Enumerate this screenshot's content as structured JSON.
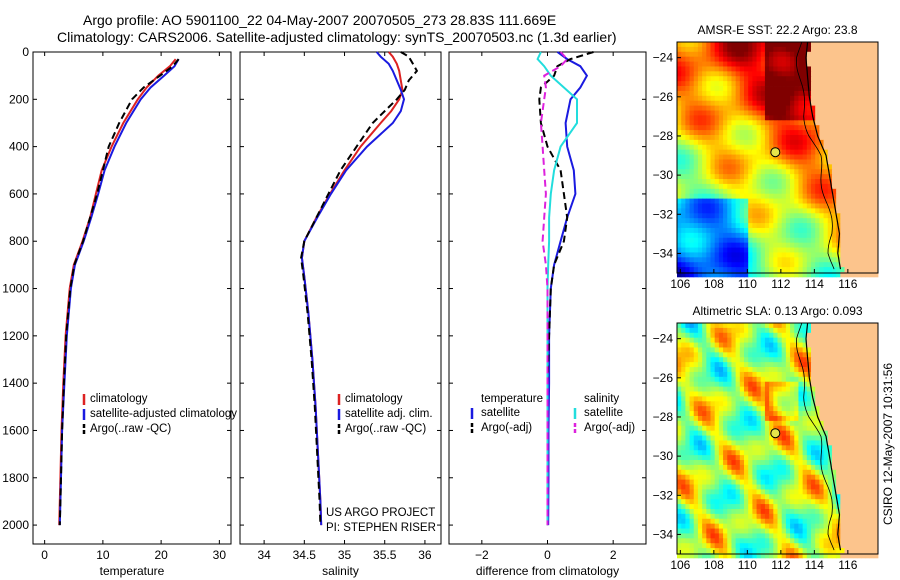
{
  "title": {
    "line1": "Argo profile: AO 5901100_22 04-May-2007 20070505_273 28.83S 111.669E",
    "line2": "Climatology: CARS2006. Satellite-adjusted climatology: synTS_20070503.nc (1.3d earlier)"
  },
  "side_label": "CSIRO 12-May-2007 10:31:56",
  "colors": {
    "climatology": "#dd2222",
    "satellite": "#1a1ae0",
    "argo": "#000000",
    "sal_satellite": "#22dddd",
    "sal_argo": "#dd22dd",
    "land": "#fcc48c"
  },
  "chart_data": [
    {
      "type": "line",
      "id": "temperature",
      "xlabel": "temperature",
      "xlim": [
        -2,
        32
      ],
      "xticks": [
        0,
        10,
        20,
        30
      ],
      "ylim": [
        0,
        2080
      ],
      "y_reversed": true,
      "yticks": [
        0,
        200,
        400,
        600,
        800,
        1000,
        1200,
        1400,
        1600,
        1800,
        2000
      ],
      "legend": [
        "climatology",
        "satellite-adjusted climatology",
        "Argo(..raw -QC)"
      ],
      "depth": [
        30,
        60,
        100,
        150,
        200,
        300,
        400,
        500,
        600,
        700,
        800,
        900,
        1000,
        1200,
        1400,
        1600,
        1800,
        2000
      ],
      "series": [
        {
          "name": "climatology",
          "style": "solid",
          "color": "#dd2222",
          "values": [
            22.5,
            21.5,
            19.5,
            17.5,
            16.0,
            13.5,
            11.5,
            9.8,
            8.8,
            7.8,
            6.5,
            5.0,
            4.3,
            3.6,
            3.2,
            2.9,
            2.7,
            2.5
          ]
        },
        {
          "name": "satellite-adjusted climatology",
          "style": "solid",
          "color": "#1a1ae0",
          "values": [
            23.0,
            22.3,
            20.5,
            18.2,
            16.5,
            14.0,
            12.0,
            10.3,
            9.2,
            8.0,
            6.7,
            5.2,
            4.5,
            3.8,
            3.4,
            3.0,
            2.8,
            2.6
          ]
        },
        {
          "name": "Argo(..raw -QC)",
          "style": "dashed",
          "color": "#000000",
          "values": [
            23.0,
            22.0,
            19.8,
            17.0,
            15.0,
            12.8,
            11.0,
            10.0,
            9.0,
            7.8,
            6.6,
            5.1,
            4.4,
            3.7,
            3.3,
            3.0,
            2.8,
            2.6
          ]
        }
      ]
    },
    {
      "type": "line",
      "id": "salinity",
      "xlabel": "salinity",
      "xlim": [
        33.7,
        36.2
      ],
      "xticks": [
        34,
        34.5,
        35,
        35.5,
        36
      ],
      "ylim": [
        0,
        2080
      ],
      "y_reversed": true,
      "legend": [
        "climatology",
        "satellite adj. clim.",
        "Argo(..raw -QC)"
      ],
      "annotation": [
        "US ARGO PROJECT",
        "PI: STEPHEN RISER"
      ],
      "depth": [
        0,
        20,
        50,
        80,
        120,
        160,
        200,
        250,
        300,
        400,
        500,
        600,
        700,
        800,
        870,
        950,
        1100,
        1300,
        1500,
        1700,
        1900,
        2000
      ],
      "series": [
        {
          "name": "climatology",
          "style": "solid",
          "color": "#dd2222",
          "values": [
            35.55,
            35.6,
            35.65,
            35.68,
            35.7,
            35.72,
            35.68,
            35.58,
            35.45,
            35.2,
            35.0,
            34.82,
            34.65,
            34.5,
            34.47,
            34.5,
            34.55,
            34.6,
            34.64,
            34.67,
            34.7,
            34.71
          ]
        },
        {
          "name": "satellite adj. clim.",
          "style": "solid",
          "color": "#1a1ae0",
          "values": [
            35.4,
            35.45,
            35.55,
            35.6,
            35.65,
            35.7,
            35.74,
            35.7,
            35.6,
            35.28,
            35.02,
            34.83,
            34.66,
            34.5,
            34.47,
            34.5,
            34.55,
            34.6,
            34.64,
            34.67,
            34.7,
            34.71
          ]
        },
        {
          "name": "Argo(..raw -QC)",
          "style": "dashed",
          "color": "#000000",
          "values": [
            35.7,
            35.8,
            35.85,
            35.9,
            35.8,
            35.75,
            35.65,
            35.5,
            35.35,
            35.15,
            34.95,
            34.8,
            34.65,
            34.5,
            34.46,
            34.49,
            34.54,
            34.59,
            34.63,
            34.66,
            34.69,
            34.7
          ]
        }
      ]
    },
    {
      "type": "line",
      "id": "difference",
      "xlabel": "difference from climatology",
      "xlim": [
        -3,
        3
      ],
      "xticks": [
        -2,
        0,
        2
      ],
      "ylim": [
        0,
        2080
      ],
      "y_reversed": true,
      "legend_groups": [
        {
          "heading": "temperature",
          "items": [
            "satellite",
            "Argo(-adj)"
          ]
        },
        {
          "heading": "salinity",
          "items": [
            "satellite",
            "Argo(-adj)"
          ]
        }
      ],
      "depth": [
        0,
        30,
        60,
        100,
        150,
        200,
        300,
        400,
        500,
        600,
        700,
        800,
        900,
        1000,
        1200,
        1400,
        1600,
        1800,
        2000
      ],
      "series": [
        {
          "name": "temperature satellite",
          "style": "solid",
          "color": "#1a1ae0",
          "values": [
            0.3,
            0.6,
            1.0,
            1.2,
            1.0,
            0.7,
            0.55,
            0.6,
            0.8,
            0.85,
            0.6,
            0.4,
            0.2,
            0.1,
            0.05,
            0.05,
            0.03,
            0.03,
            0.02
          ]
        },
        {
          "name": "temperature Argo(-adj)",
          "style": "dashed",
          "color": "#000000",
          "values": [
            1.4,
            0.7,
            0.3,
            0.2,
            -0.2,
            -0.25,
            -0.2,
            0.0,
            0.4,
            0.5,
            0.6,
            0.5,
            0.2,
            0.1,
            0.05,
            0.0,
            0.0,
            0.0,
            0.0
          ]
        },
        {
          "name": "salinity satellite",
          "style": "solid",
          "color": "#22dddd",
          "values": [
            -0.2,
            -0.3,
            -0.1,
            0.1,
            0.5,
            0.9,
            0.9,
            0.4,
            0.2,
            0.1,
            0.05,
            0.05,
            0.02,
            0.0,
            0.0,
            0.0,
            0.0,
            0.0,
            0.0
          ]
        },
        {
          "name": "salinity Argo(-adj)",
          "style": "dashed",
          "color": "#dd22dd",
          "values": [
            0.4,
            0.6,
            0.4,
            -0.1,
            -0.05,
            -0.1,
            -0.2,
            -0.15,
            -0.1,
            -0.05,
            -0.1,
            -0.15,
            -0.05,
            0.0,
            0.0,
            0.0,
            0.0,
            0.0,
            0.0
          ]
        }
      ]
    },
    {
      "type": "heatmap",
      "id": "sst_map",
      "title": "AMSR-E SST: 22.2 Argo: 23.8",
      "xlim": [
        105.8,
        117.8
      ],
      "ylim": [
        -35.0,
        -23.2
      ],
      "xticks": [
        106,
        108,
        110,
        112,
        114,
        116
      ],
      "yticks": [
        -24,
        -26,
        -28,
        -30,
        -32,
        -34
      ],
      "argo_position": [
        111.669,
        -28.83
      ],
      "colorscheme": "jet"
    },
    {
      "type": "heatmap",
      "id": "sla_map",
      "title": "Altimetric SLA: 0.13 Argo: 0.093",
      "xlim": [
        105.8,
        117.8
      ],
      "ylim": [
        -35.0,
        -23.2
      ],
      "xticks": [
        106,
        108,
        110,
        112,
        114,
        116
      ],
      "yticks": [
        -24,
        -26,
        -28,
        -30,
        -32,
        -34
      ],
      "argo_position": [
        111.669,
        -28.83
      ],
      "colorscheme": "jet"
    }
  ]
}
